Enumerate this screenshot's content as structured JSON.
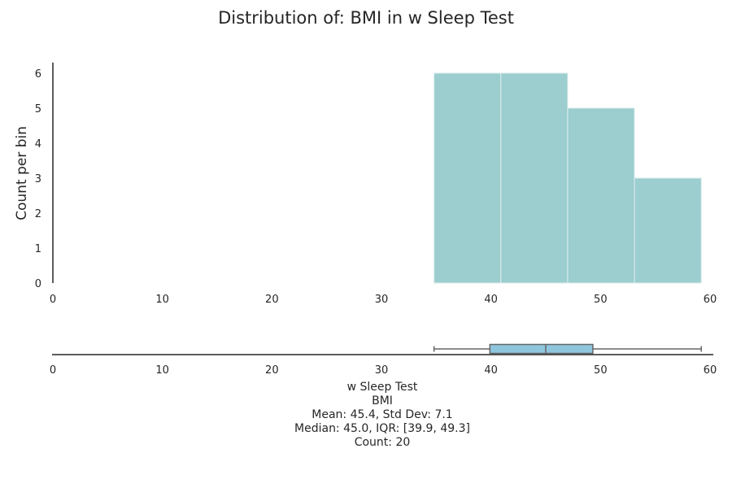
{
  "chart_data": {
    "type": "bar",
    "title": "Distribution of: BMI in w Sleep Test",
    "ylabel": "Count per bin",
    "xlim": [
      0,
      60
    ],
    "ylim": [
      0,
      6.3
    ],
    "x_ticks": [
      "0",
      "10",
      "20",
      "30",
      "40",
      "50",
      "60"
    ],
    "y_ticks": [
      "0",
      "1",
      "2",
      "3",
      "4",
      "5",
      "6"
    ],
    "grid": false,
    "bins": [
      {
        "start": 34.8,
        "end": 40.9,
        "count": 6
      },
      {
        "start": 40.9,
        "end": 47.0,
        "count": 6
      },
      {
        "start": 47.0,
        "end": 53.1,
        "count": 5
      },
      {
        "start": 53.1,
        "end": 59.2,
        "count": 3
      }
    ],
    "boxplot": {
      "min": 34.8,
      "q1": 39.9,
      "median": 45.0,
      "q3": 49.3,
      "max": 59.2
    },
    "stats_lines": [
      "w Sleep Test",
      "BMI",
      "Mean: 45.4, Std Dev: 7.1",
      "Median: 45.0, IQR: [39.9, 49.3]",
      "Count: 20"
    ],
    "colors": {
      "bar_fill": "#9ccdcf",
      "bar_edge": "#ddeeee",
      "box_fill": "#8fc6de",
      "box_edge": "#666666",
      "axis": "#262626"
    }
  }
}
